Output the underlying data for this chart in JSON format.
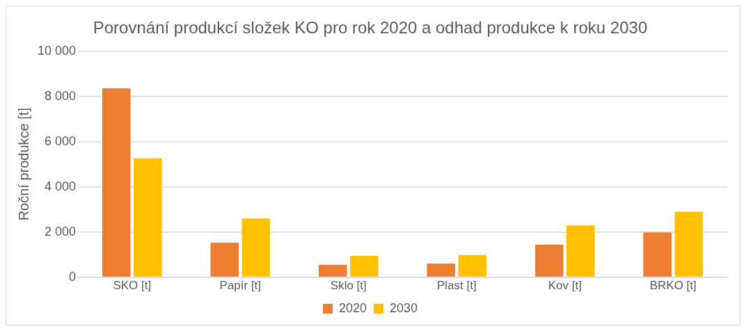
{
  "chart_data": {
    "type": "bar",
    "title": "Porovnání produkcí složek KO pro rok 2020 a odhad produkce k roku 2030",
    "ylabel": "Roční produkce [t]",
    "categories": [
      "SKO [t]",
      "Papír [t]",
      "Sklo [t]",
      "Plast [t]",
      "Kov [t]",
      "BRKO [t]"
    ],
    "series": [
      {
        "name": "2020",
        "color": "#ed7d31",
        "values": [
          8360,
          1530,
          550,
          600,
          1440,
          1980
        ]
      },
      {
        "name": "2030",
        "color": "#ffc000",
        "values": [
          5270,
          2600,
          940,
          980,
          2290,
          2900
        ]
      }
    ],
    "ylim": [
      0,
      10000
    ],
    "yticks": [
      0,
      {
        "value": 2000,
        "label": "2 000"
      },
      {
        "value": 4000,
        "label": "4 000"
      },
      {
        "value": 6000,
        "label": "6 000"
      },
      {
        "value": 8000,
        "label": "8 000"
      },
      {
        "value": 10000,
        "label": "10 000"
      }
    ],
    "grid": "y",
    "legend": "bottom"
  }
}
